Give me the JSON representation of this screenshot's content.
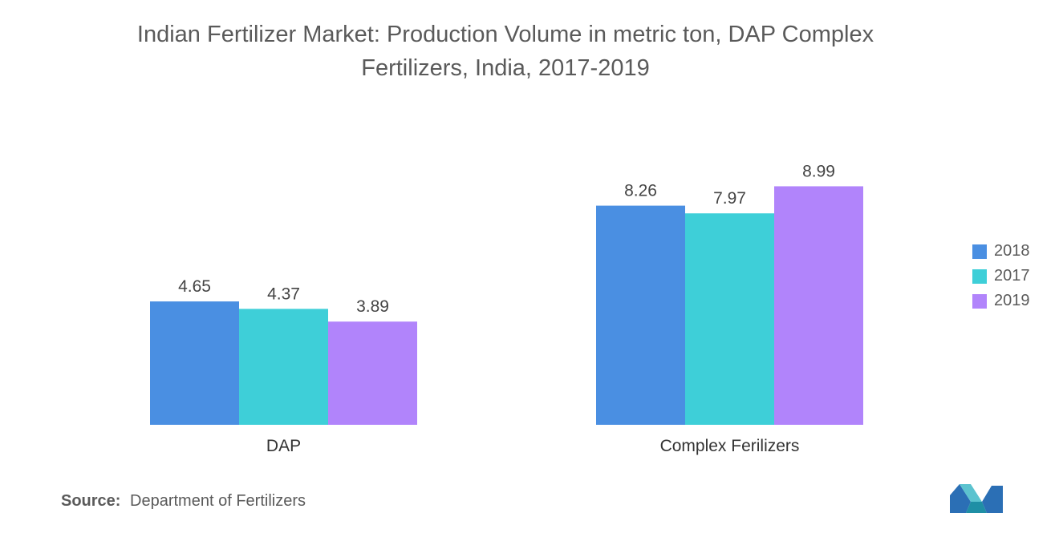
{
  "title_lines": [
    "Indian Fertilizer Market: Production Volume in metric ton, DAP Complex",
    "Fertilizers, India, 2017-2019"
  ],
  "source": {
    "label": "Source:",
    "text": "Department of Fertilizers"
  },
  "legend": [
    {
      "name": "2018",
      "color": "#4a8fe2"
    },
    {
      "name": "2017",
      "color": "#3ecfd8"
    },
    {
      "name": "2019",
      "color": "#b184fb"
    }
  ],
  "chart_data": {
    "type": "bar",
    "title": "Indian Fertilizer Market: Production Volume in metric ton, DAP Complex Fertilizers, India, 2017-2019",
    "categories": [
      "DAP",
      "Complex Ferilizers"
    ],
    "series": [
      {
        "name": "2018",
        "values": [
          4.65,
          8.26
        ],
        "color": "#4a8fe2"
      },
      {
        "name": "2017",
        "values": [
          4.37,
          7.97
        ],
        "color": "#3ecfd8"
      },
      {
        "name": "2019",
        "values": [
          3.89,
          8.99
        ],
        "color": "#b184fb"
      }
    ],
    "xlabel": "",
    "ylabel": "",
    "ylim": [
      0,
      9.5
    ],
    "grid": false,
    "legend_position": "right",
    "data_labels": true
  }
}
